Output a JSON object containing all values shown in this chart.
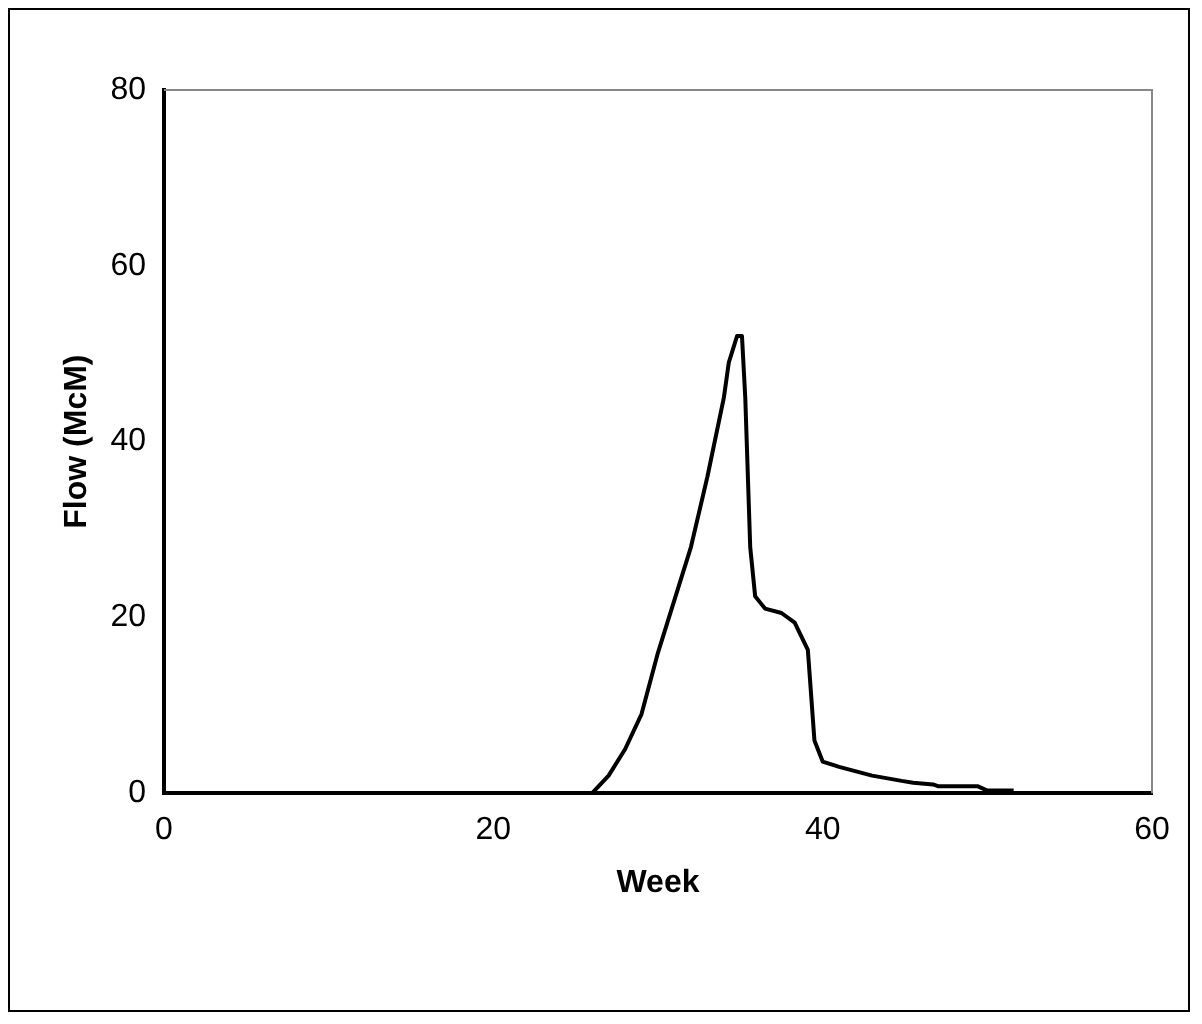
{
  "chart_data": {
    "type": "line",
    "xlabel": "Week",
    "ylabel": "Flow (McM)",
    "x": [
      26,
      27,
      28,
      29,
      30,
      31,
      32,
      33,
      34,
      34.3,
      34.8,
      35.1,
      35.3,
      35.6,
      35.9,
      36.5,
      37.5,
      38.3,
      39.1,
      39.5,
      40,
      41,
      43,
      44.8,
      45.5,
      46.7,
      47,
      49.4,
      50,
      51.6
    ],
    "series": [
      {
        "color": "#000000",
        "values": [
          0,
          2,
          5,
          9,
          16,
          22,
          28,
          36,
          45,
          49,
          52,
          52,
          45,
          28,
          22.4,
          21,
          20.5,
          19.4,
          16.3,
          6,
          3.6,
          3,
          2,
          1.4,
          1.2,
          1,
          0.8,
          0.8,
          0.3,
          0.3
        ]
      }
    ],
    "xlim": [
      0,
      60
    ],
    "xticks": [
      0,
      20,
      40,
      60
    ],
    "ylim": [
      0,
      80
    ],
    "yticks": [
      0,
      20,
      40,
      60,
      80
    ],
    "grid": false,
    "legend": false,
    "marker": "none",
    "line_style": "solid"
  }
}
